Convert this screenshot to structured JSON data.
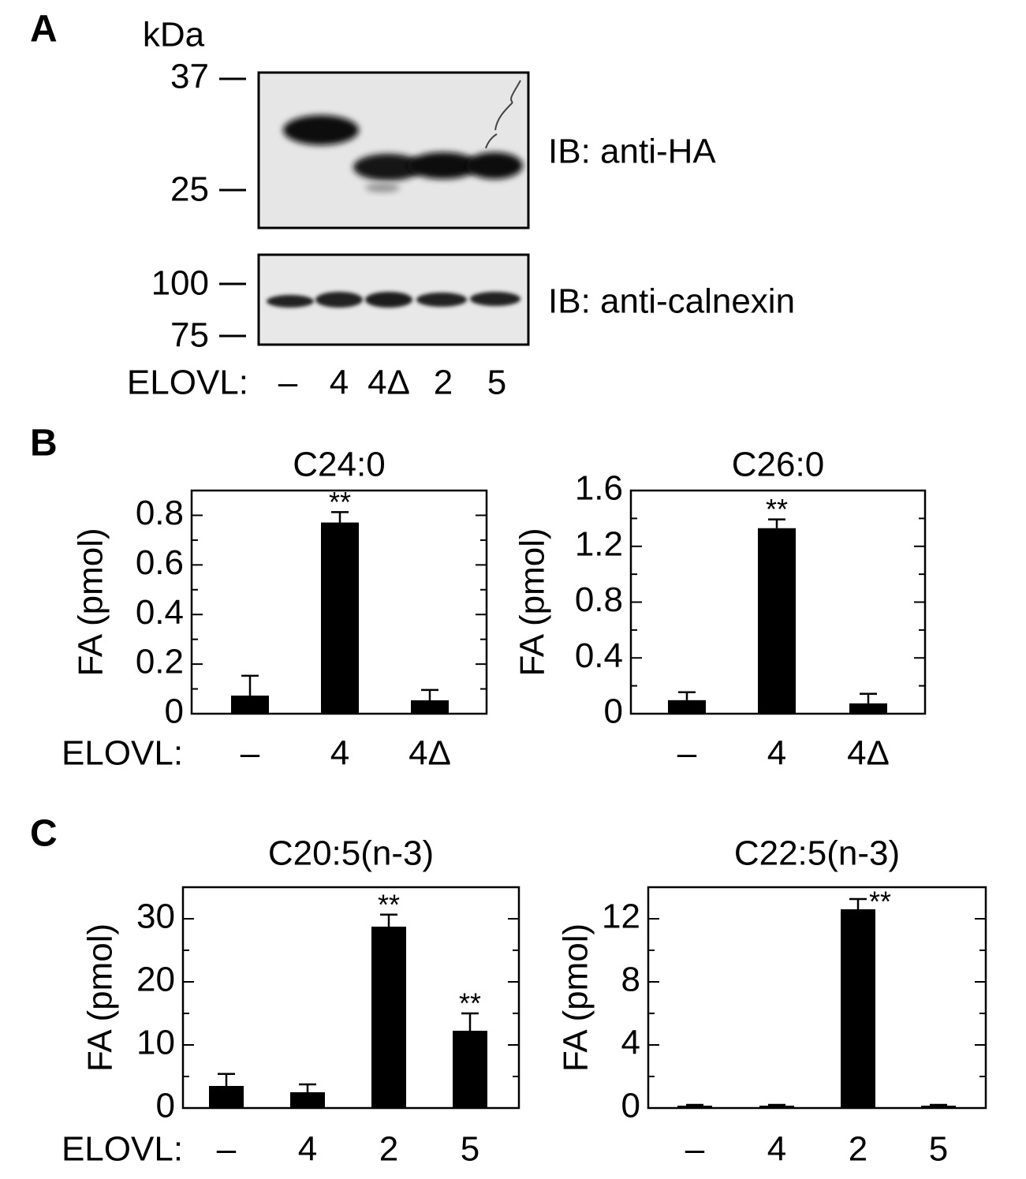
{
  "panel_labels": [
    "A",
    "B",
    "C"
  ],
  "blot": {
    "unit": "kDa",
    "top": {
      "markers": [
        37,
        25
      ],
      "label": "IB: anti-HA"
    },
    "bottom": {
      "markers": [
        100,
        75
      ],
      "label": "IB: anti-calnexin"
    },
    "lane_title": "ELOVL:",
    "lanes": [
      "–",
      "4",
      "4Δ",
      "2",
      "5"
    ]
  },
  "chart_data": [
    {
      "type": "bar",
      "title": "C24:0",
      "y_label": "FA (pmol)",
      "x_label": "ELOVL:",
      "categories": [
        "–",
        "4",
        "4Δ"
      ],
      "values": [
        0.073,
        0.771,
        0.054
      ],
      "errors": [
        0.08,
        0.042,
        0.042
      ],
      "significance": [
        null,
        "**",
        null
      ],
      "color": "#000000",
      "ylim": [
        0,
        0.9
      ],
      "yticks": [
        0,
        0.2,
        0.4,
        0.6,
        0.8
      ],
      "minor_yticks": [
        0.1,
        0.3,
        0.5,
        0.7,
        0.9
      ]
    },
    {
      "type": "bar",
      "title": "C26:0",
      "y_label": "FA (pmol)",
      "categories": [
        "–",
        "4",
        "4Δ"
      ],
      "values": [
        0.097,
        1.33,
        0.074
      ],
      "errors": [
        0.057,
        0.063,
        0.069
      ],
      "significance": [
        null,
        "**",
        null
      ],
      "color": "#000000",
      "ylim": [
        0,
        1.6
      ],
      "yticks": [
        0,
        0.4,
        0.8,
        1.2,
        1.6
      ],
      "minor_yticks": [
        0.2,
        0.6,
        1.0,
        1.4
      ]
    },
    {
      "type": "bar",
      "title": "C20:5(n-3)",
      "y_label": "FA (pmol)",
      "x_label": "ELOVL:",
      "categories": [
        "–",
        "4",
        "2",
        "5"
      ],
      "values": [
        3.5,
        2.5,
        28.75,
        12.25
      ],
      "errors": [
        1.9,
        1.25,
        1.9,
        2.75
      ],
      "significance": [
        null,
        null,
        "**",
        "**"
      ],
      "color": "#000000",
      "ylim": [
        0,
        35
      ],
      "yticks": [
        0,
        10,
        20,
        30
      ],
      "minor_yticks": [
        5,
        15,
        25,
        35
      ]
    },
    {
      "type": "bar",
      "title": "C22:5(n-3)",
      "y_label": "FA (pmol)",
      "categories": [
        "–",
        "4",
        "2",
        "5"
      ],
      "values": [
        0.15,
        0.15,
        12.6,
        0.15
      ],
      "errors": [
        0.05,
        0.05,
        0.65,
        0.05
      ],
      "significance": [
        null,
        null,
        "**",
        null
      ],
      "color": "#000000",
      "ylim": [
        0,
        14
      ],
      "yticks": [
        0,
        4,
        8,
        12
      ],
      "minor_yticks": [
        2,
        6,
        10,
        14
      ]
    }
  ]
}
